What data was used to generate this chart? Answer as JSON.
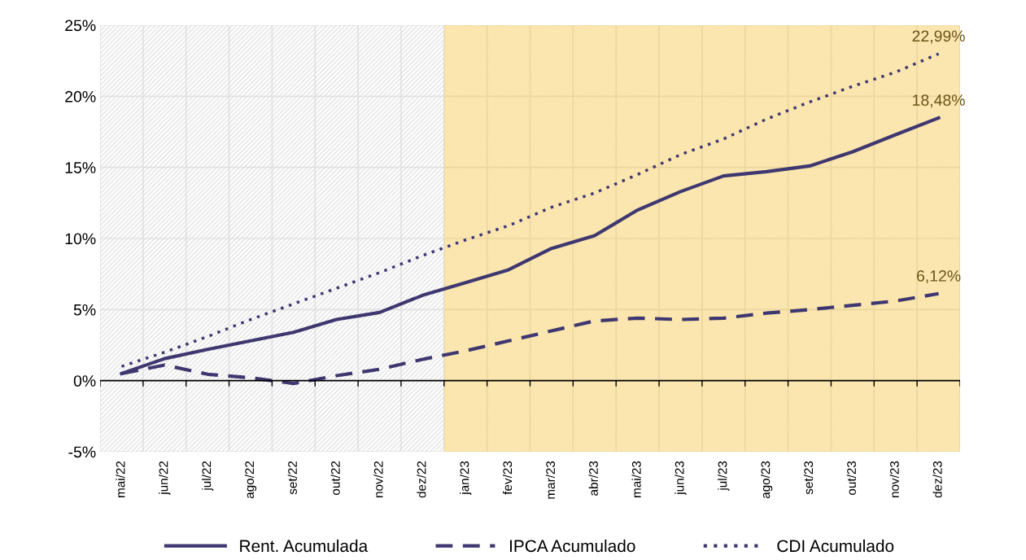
{
  "chart_data": {
    "type": "line",
    "categories": [
      "mai/22",
      "jun/22",
      "jul/22",
      "ago/22",
      "set/22",
      "out/22",
      "nov/22",
      "dez/22",
      "jan/23",
      "fev/23",
      "mar/23",
      "abr/23",
      "mai/23",
      "jun/23",
      "jul/23",
      "ago/23",
      "set/23",
      "out/23",
      "nov/23",
      "dez/23"
    ],
    "series": [
      {
        "name": "Rent. Acumulada",
        "color": "#3f3870",
        "line_style": "solid",
        "values": [
          0.5,
          1.55,
          2.2,
          2.8,
          3.4,
          4.3,
          4.8,
          6.0,
          6.9,
          7.8,
          9.3,
          10.2,
          12.0,
          13.3,
          14.4,
          14.7,
          15.1,
          16.1,
          17.3,
          18.48
        ],
        "value_labels": [
          null,
          null,
          null,
          null,
          null,
          null,
          null,
          null,
          null,
          null,
          null,
          null,
          null,
          null,
          null,
          null,
          null,
          null,
          null,
          "18,48%"
        ]
      },
      {
        "name": "IPCA Acumulado",
        "color": "#3f3870",
        "line_style": "dashed",
        "values": [
          0.5,
          1.1,
          0.45,
          0.2,
          -0.2,
          0.35,
          0.8,
          1.5,
          2.1,
          2.8,
          3.5,
          4.2,
          4.4,
          4.3,
          4.4,
          4.75,
          5.0,
          5.3,
          5.6,
          6.12
        ],
        "value_labels": [
          null,
          null,
          null,
          null,
          null,
          null,
          null,
          null,
          null,
          null,
          null,
          null,
          null,
          null,
          null,
          null,
          null,
          null,
          null,
          "6,12%"
        ]
      },
      {
        "name": "CDI Acumulado",
        "color": "#3f3870",
        "line_style": "dotted",
        "values": [
          1.0,
          2.0,
          3.1,
          4.3,
          5.4,
          6.5,
          7.6,
          8.8,
          9.9,
          10.9,
          12.2,
          13.2,
          14.5,
          15.9,
          17.0,
          18.4,
          19.6,
          20.7,
          21.7,
          22.99
        ],
        "value_labels": [
          null,
          null,
          null,
          null,
          null,
          null,
          null,
          null,
          null,
          null,
          null,
          null,
          null,
          null,
          null,
          null,
          null,
          null,
          null,
          "22,99%"
        ]
      }
    ],
    "ylim": [
      -5,
      25
    ],
    "yticks": [
      {
        "value": -5,
        "label": "-5%"
      },
      {
        "value": 0,
        "label": "0%"
      },
      {
        "value": 5,
        "label": "5%"
      },
      {
        "value": 10,
        "label": "10%"
      },
      {
        "value": 15,
        "label": "15%"
      },
      {
        "value": 20,
        "label": "20%"
      },
      {
        "value": 25,
        "label": "25%"
      }
    ],
    "bands": [
      {
        "axis": "x",
        "from": "mai/22",
        "to": "dez/22",
        "color": "#d9d9d9"
      },
      {
        "axis": "x",
        "from": "jan/23",
        "to": "dez/23",
        "color": "#f5c242"
      }
    ],
    "grid": true,
    "legend": "bottom"
  }
}
